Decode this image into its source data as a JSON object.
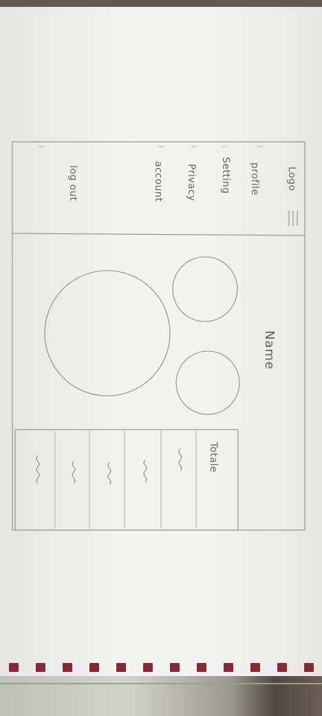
{
  "sketch": {
    "sidebar": {
      "logo": "Logo",
      "menu_icon": "hamburger-menu-icon",
      "items": [
        "profile",
        "Setting",
        "Privacy",
        "account"
      ],
      "logout": "log out"
    },
    "main": {
      "name_label": "Name",
      "circles": [
        "avatar-small-top",
        "avatar-small-bottom",
        "chart-circle-large"
      ]
    },
    "table": {
      "header": "Totale",
      "placeholder_rows": 5
    }
  },
  "colors": {
    "pencil": "#8b8b8b",
    "paper": "#f1f1ef",
    "binding": "#8b2730"
  }
}
